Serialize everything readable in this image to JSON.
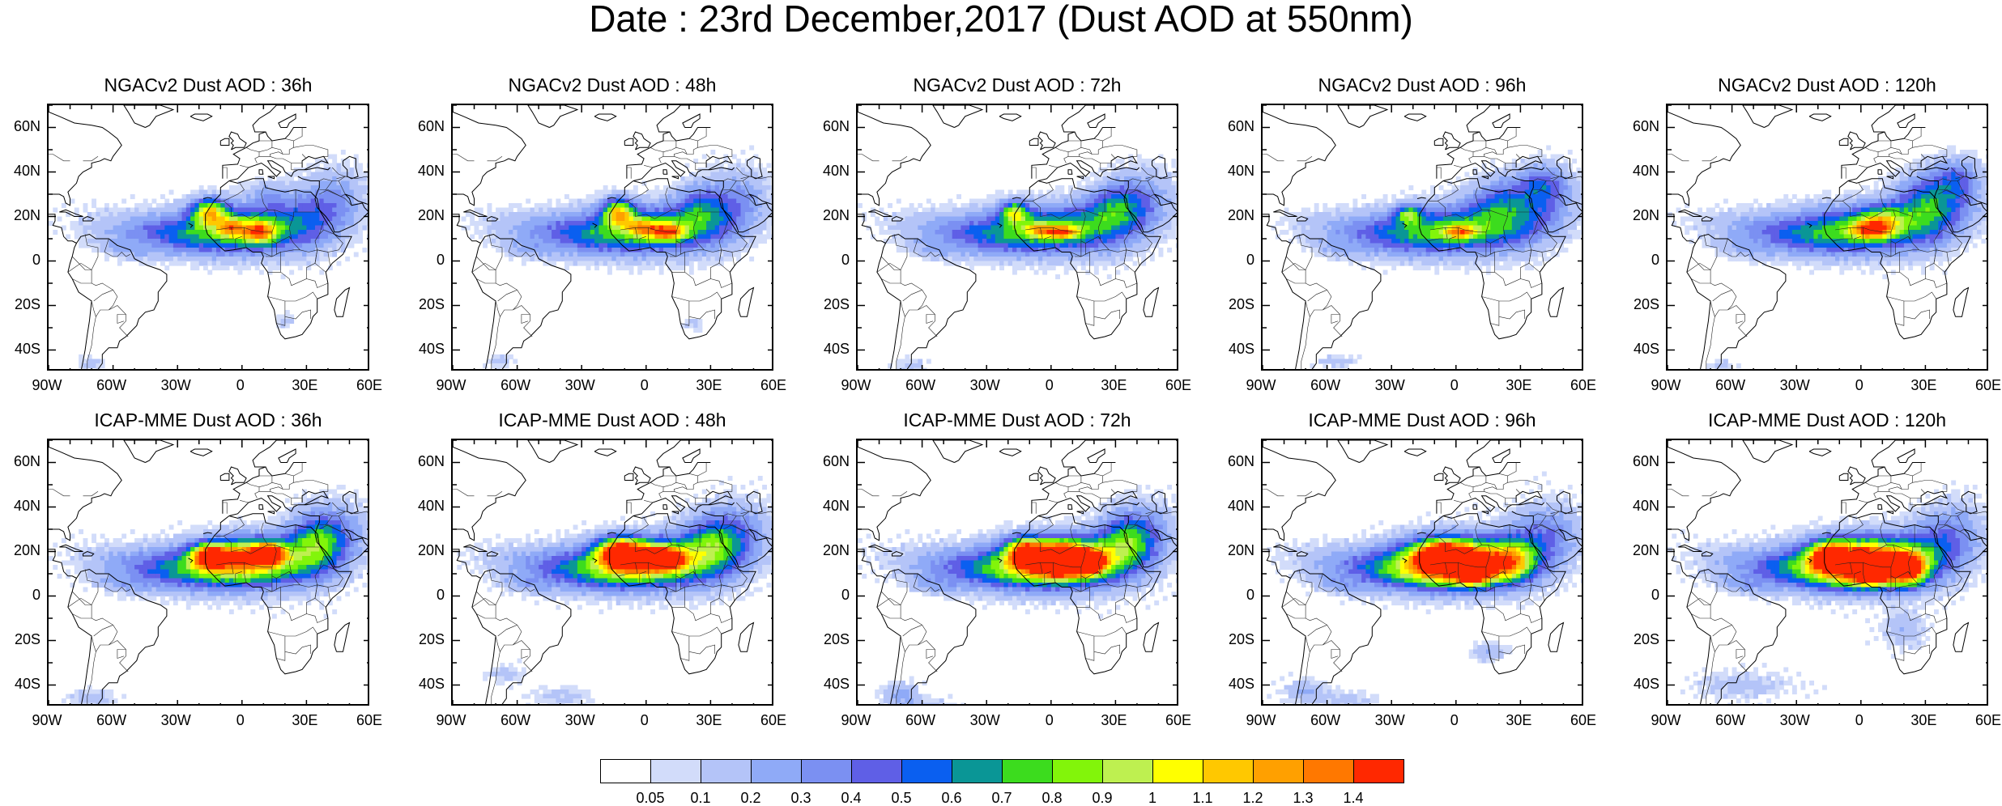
{
  "title": "Date : 23rd December,2017 (Dust AOD at 550nm)",
  "panels": [
    {
      "title": "NGACv2 Dust AOD : 36h",
      "row": 0,
      "col": 0,
      "model": "ngac",
      "lead": 0
    },
    {
      "title": "NGACv2 Dust AOD : 48h",
      "row": 0,
      "col": 1,
      "model": "ngac",
      "lead": 1
    },
    {
      "title": "NGACv2 Dust AOD : 72h",
      "row": 0,
      "col": 2,
      "model": "ngac",
      "lead": 2
    },
    {
      "title": "NGACv2 Dust AOD : 96h",
      "row": 0,
      "col": 3,
      "model": "ngac",
      "lead": 3
    },
    {
      "title": "NGACv2 Dust AOD : 120h",
      "row": 0,
      "col": 4,
      "model": "ngac",
      "lead": 4
    },
    {
      "title": "ICAP-MME Dust AOD : 36h",
      "row": 1,
      "col": 0,
      "model": "icap",
      "lead": 0
    },
    {
      "title": "ICAP-MME Dust AOD : 48h",
      "row": 1,
      "col": 1,
      "model": "icap",
      "lead": 1
    },
    {
      "title": "ICAP-MME Dust AOD : 72h",
      "row": 1,
      "col": 2,
      "model": "icap",
      "lead": 2
    },
    {
      "title": "ICAP-MME Dust AOD : 96h",
      "row": 1,
      "col": 3,
      "model": "icap",
      "lead": 3
    },
    {
      "title": "ICAP-MME Dust AOD : 120h",
      "row": 1,
      "col": 4,
      "model": "icap",
      "lead": 4
    }
  ],
  "lon_range": [
    -90,
    60
  ],
  "lat_range": [
    -50,
    70
  ],
  "lon_ticks": [
    {
      "value": -90,
      "label": "90W"
    },
    {
      "value": -60,
      "label": "60W"
    },
    {
      "value": -30,
      "label": "30W"
    },
    {
      "value": 0,
      "label": "0"
    },
    {
      "value": 30,
      "label": "30E"
    },
    {
      "value": 60,
      "label": "60E"
    }
  ],
  "lat_ticks": [
    {
      "value": 60,
      "label": "60N"
    },
    {
      "value": 40,
      "label": "40N"
    },
    {
      "value": 20,
      "label": "20N"
    },
    {
      "value": 0,
      "label": "0"
    },
    {
      "value": -20,
      "label": "20S"
    },
    {
      "value": -40,
      "label": "40S"
    }
  ],
  "colorbar": {
    "colors": [
      "#ffffff",
      "#d2dcfa",
      "#b4c4f8",
      "#8faaf7",
      "#7b90f2",
      "#5f5fe6",
      "#0a5ff0",
      "#0a9696",
      "#3cdc1e",
      "#82f50a",
      "#bef050",
      "#ffff00",
      "#ffc800",
      "#ffa000",
      "#ff7800",
      "#ff2800"
    ],
    "labels": [
      "0.05",
      "0.1",
      "0.2",
      "0.3",
      "0.4",
      "0.5",
      "0.6",
      "0.7",
      "0.8",
      "0.9",
      "1",
      "1.1",
      "1.2",
      "1.3",
      "1.4"
    ]
  }
}
